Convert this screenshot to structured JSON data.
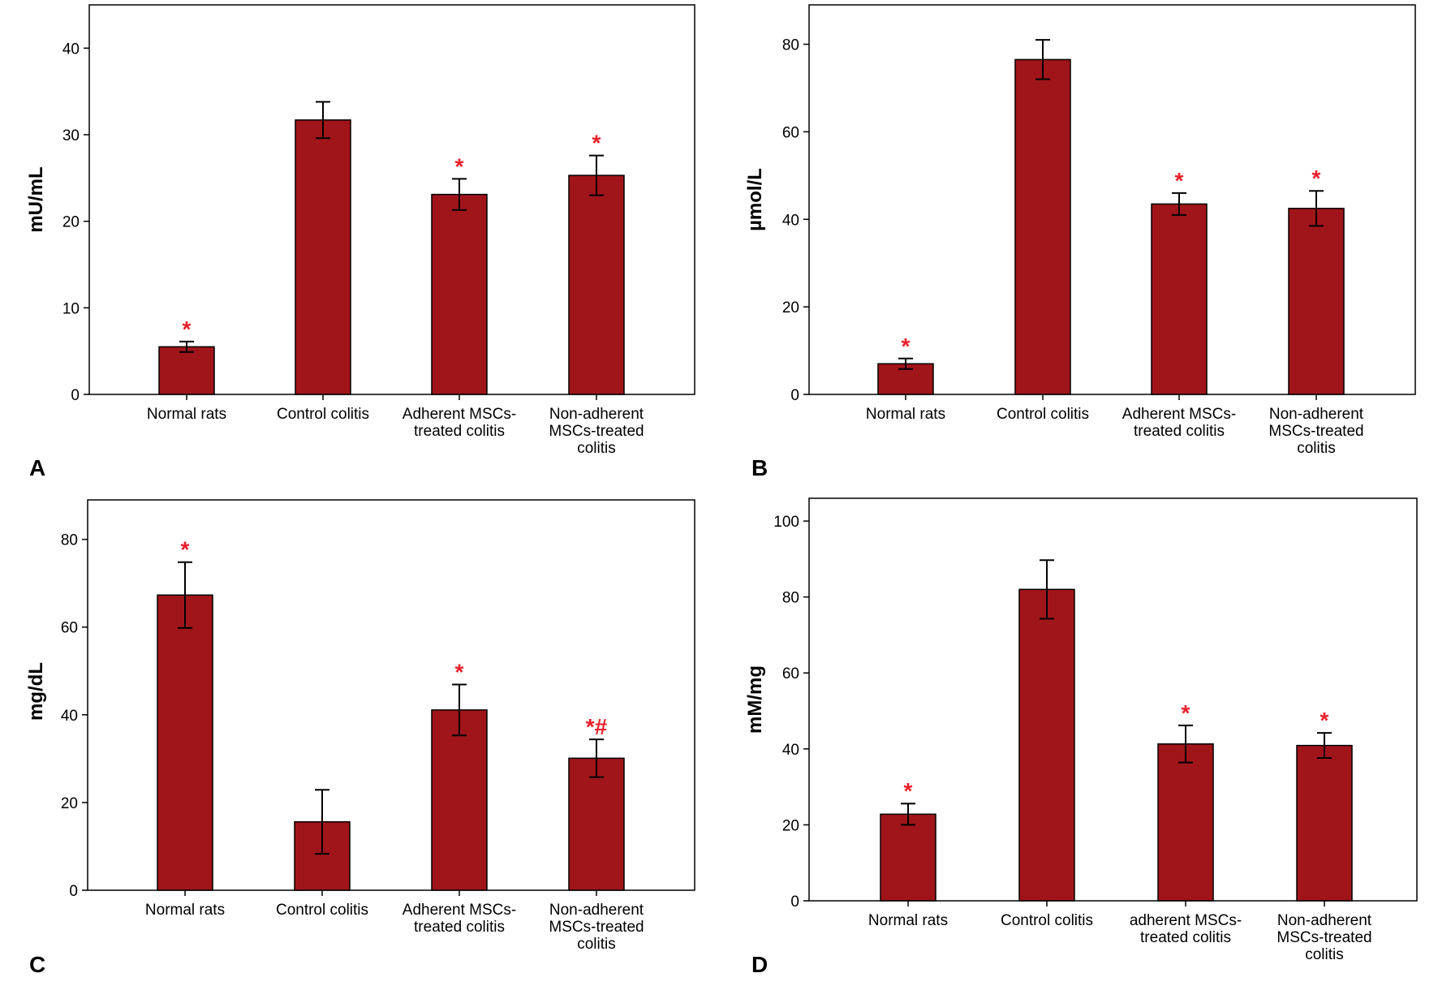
{
  "chart_data": [
    {
      "type": "bar",
      "panel": "A",
      "ylabel": "mU/mL",
      "ylim": [
        0,
        45
      ],
      "yticks": [
        0,
        10,
        20,
        30,
        40
      ],
      "categories": [
        "Normal rats",
        "Control colitis",
        "Adherent MSCs-\ntreated colitis",
        "Non-adherent\nMSCs-treated\ncolitis"
      ],
      "values": [
        5.5,
        31.7,
        23.1,
        25.3
      ],
      "errors": [
        0.6,
        2.1,
        1.8,
        2.3
      ],
      "annotations": [
        "*",
        "",
        "*",
        "*"
      ]
    },
    {
      "type": "bar",
      "panel": "B",
      "ylabel": "µmol/L",
      "ylim": [
        0,
        89
      ],
      "yticks": [
        0,
        20,
        40,
        60,
        80
      ],
      "categories": [
        "Normal rats",
        "Control colitis",
        "Adherent MSCs-\ntreated colitis",
        "Non-adherent\nMSCs-treated\ncolitis"
      ],
      "values": [
        7.0,
        76.5,
        43.5,
        42.5
      ],
      "errors": [
        1.2,
        4.5,
        2.5,
        4.0
      ],
      "annotations": [
        "*",
        "",
        "*",
        "*"
      ]
    },
    {
      "type": "bar",
      "panel": "C",
      "ylabel": "mg/dL",
      "ylim": [
        0,
        89
      ],
      "yticks": [
        0,
        20,
        40,
        60,
        80
      ],
      "categories": [
        "Normal rats",
        "Control colitis",
        "Adherent MSCs-\ntreated colitis",
        "Non-adherent\nMSCs-treated\ncolitis"
      ],
      "values": [
        67.3,
        15.6,
        41.1,
        30.1
      ],
      "errors": [
        7.5,
        7.3,
        5.8,
        4.3
      ],
      "annotations": [
        "*",
        "",
        "*",
        "*#"
      ]
    },
    {
      "type": "bar",
      "panel": "D",
      "ylabel": "mM/mg",
      "ylim": [
        0,
        106
      ],
      "yticks": [
        0,
        20,
        40,
        60,
        80,
        100
      ],
      "categories": [
        "Normal rats",
        "Control colitis",
        "adherent MSCs-\ntreated colitis",
        "Non-adherent\nMSCs-treated\ncolitis"
      ],
      "values": [
        22.8,
        82.0,
        41.3,
        40.9
      ],
      "errors": [
        2.8,
        7.7,
        4.9,
        3.3
      ],
      "annotations": [
        "*",
        "",
        "*",
        "*"
      ]
    }
  ],
  "colors": {
    "bar": "#a0151a",
    "annotation": "#e8202a"
  }
}
